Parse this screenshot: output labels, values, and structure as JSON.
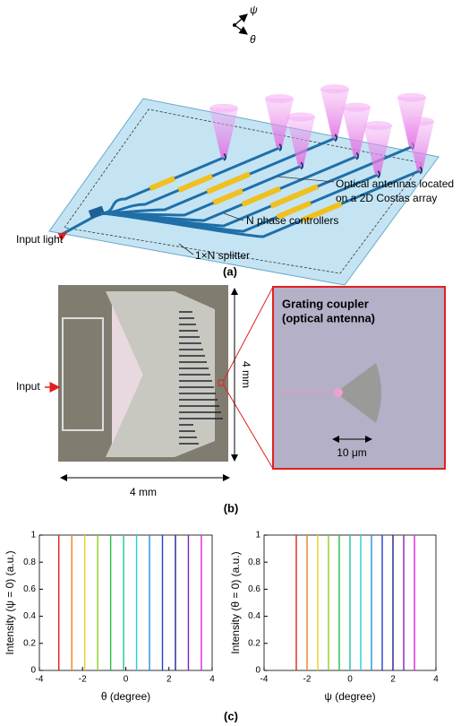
{
  "panel_a": {
    "axes": {
      "psi": "ψ",
      "theta": "θ"
    },
    "labels": {
      "antennas": [
        "Optical antennas located",
        "on a 2D Costas array"
      ],
      "phase": "N phase controllers",
      "splitter": "1×N splitter",
      "input": "Input light"
    },
    "caption": "(a)"
  },
  "panel_b": {
    "input": "Input",
    "height": "4 mm",
    "width": "4 mm",
    "inset_title": [
      "Grating coupler",
      "(optical antenna)"
    ],
    "scale_bar": "10 μm",
    "caption": "(b)"
  },
  "chart_data": [
    {
      "type": "line",
      "ylabel": "Intensity (ψ = 0) (a.u.)",
      "xlabel": "θ (degree)",
      "xlim": [
        -4,
        4
      ],
      "ylim": [
        0,
        1
      ],
      "xticks": [
        -4,
        -2,
        0,
        2,
        4
      ],
      "yticks": [
        0,
        0.2,
        0.4,
        0.6,
        0.8,
        1
      ],
      "series": [
        {
          "color": "#e02020",
          "x": [
            -3.1
          ],
          "values": [
            1
          ]
        },
        {
          "color": "#f08020",
          "x": [
            -2.5
          ],
          "values": [
            1
          ]
        },
        {
          "color": "#e8d020",
          "x": [
            -1.9
          ],
          "values": [
            1
          ]
        },
        {
          "color": "#90d020",
          "x": [
            -1.3
          ],
          "values": [
            1
          ]
        },
        {
          "color": "#20c040",
          "x": [
            -0.7
          ],
          "values": [
            1
          ]
        },
        {
          "color": "#20c0a0",
          "x": [
            -0.1
          ],
          "values": [
            1
          ]
        },
        {
          "color": "#20d0e0",
          "x": [
            0.5
          ],
          "values": [
            1
          ]
        },
        {
          "color": "#2090e0",
          "x": [
            1.1
          ],
          "values": [
            1
          ]
        },
        {
          "color": "#2040d0",
          "x": [
            1.7
          ],
          "values": [
            1
          ]
        },
        {
          "color": "#202090",
          "x": [
            2.3
          ],
          "values": [
            1
          ]
        },
        {
          "color": "#8020c0",
          "x": [
            2.9
          ],
          "values": [
            1
          ]
        },
        {
          "color": "#e020e0",
          "x": [
            3.5
          ],
          "values": [
            1
          ]
        }
      ]
    },
    {
      "type": "line",
      "ylabel": "Intensity (θ = 0) (a.u.)",
      "xlabel": "ψ (degree)",
      "xlim": [
        -4,
        4
      ],
      "ylim": [
        0,
        1
      ],
      "xticks": [
        -4,
        -2,
        0,
        2,
        4
      ],
      "yticks": [
        0,
        0.2,
        0.4,
        0.6,
        0.8,
        1
      ],
      "series": [
        {
          "color": "#e02020",
          "x": [
            -2.5
          ],
          "values": [
            1
          ]
        },
        {
          "color": "#f08020",
          "x": [
            -2.0
          ],
          "values": [
            1
          ]
        },
        {
          "color": "#e8d020",
          "x": [
            -1.5
          ],
          "values": [
            1
          ]
        },
        {
          "color": "#90d020",
          "x": [
            -1.0
          ],
          "values": [
            1
          ]
        },
        {
          "color": "#20c040",
          "x": [
            -0.5
          ],
          "values": [
            1
          ]
        },
        {
          "color": "#20c0a0",
          "x": [
            0.0
          ],
          "values": [
            1
          ]
        },
        {
          "color": "#20d0e0",
          "x": [
            0.5
          ],
          "values": [
            1
          ]
        },
        {
          "color": "#2090e0",
          "x": [
            1.0
          ],
          "values": [
            1
          ]
        },
        {
          "color": "#2040d0",
          "x": [
            1.5
          ],
          "values": [
            1
          ]
        },
        {
          "color": "#202090",
          "x": [
            2.0
          ],
          "values": [
            1
          ]
        },
        {
          "color": "#8020c0",
          "x": [
            2.5
          ],
          "values": [
            1
          ]
        },
        {
          "color": "#e020e0",
          "x": [
            3.0
          ],
          "values": [
            1
          ]
        }
      ]
    }
  ],
  "panel_c_caption": "(c)"
}
